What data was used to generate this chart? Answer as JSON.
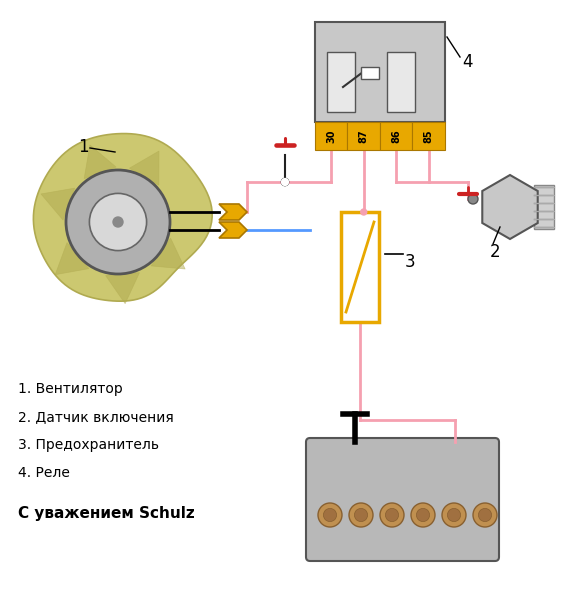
{
  "background_color": "#ffffff",
  "wire_pink": "#f5a0b0",
  "wire_red": "#cc2222",
  "wire_blue": "#5599ff",
  "wire_black": "#222222",
  "relay_body": "#c8c8c8",
  "relay_border": "#555555",
  "relay_pin_fill": "#e8a800",
  "relay_pin_border": "#aa7700",
  "fuse_fill": "#ffffff",
  "fuse_border": "#e8a800",
  "fuse_line": "#e8a800",
  "fan_blade": "#ccc870",
  "fan_blade_dark": "#b0aa50",
  "motor_fill": "#b0b0b0",
  "motor_border": "#555555",
  "conn_fill": "#e8a800",
  "conn_border": "#aa7700",
  "battery_fill": "#b8b8b8",
  "battery_border": "#555555",
  "battery_cell": "#c09050",
  "sensor_fill": "#c8c8c8",
  "sensor_border": "#555555",
  "label_1": "1. Вентилятор",
  "label_2": "2. Датчик включения",
  "label_3": "3. Предохранитель",
  "label_4": "4. Реле",
  "signature": "С уважением Schulz",
  "relay_pins": [
    "30",
    "87",
    "86",
    "85"
  ]
}
